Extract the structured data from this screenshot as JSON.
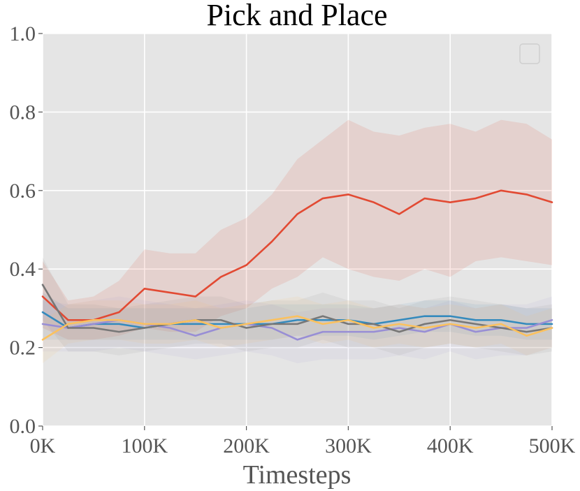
{
  "chart_data": {
    "type": "line",
    "title": "Pick and Place",
    "xlabel": "Timesteps",
    "ylabel": "",
    "xlim": [
      0,
      500000
    ],
    "ylim": [
      0,
      1.0
    ],
    "x_ticks": [
      0,
      100000,
      200000,
      300000,
      400000,
      500000
    ],
    "x_tick_labels": [
      "0K",
      "100K",
      "200K",
      "300K",
      "400K",
      "500K"
    ],
    "y_ticks": [
      0.0,
      0.2,
      0.4,
      0.6,
      0.8,
      1.0
    ],
    "y_tick_labels": [
      "0.0",
      "0.2",
      "0.4",
      "0.6",
      "0.8",
      "1.0"
    ],
    "grid": true,
    "legend": "top-right (empty)",
    "background": "#e5e5e5",
    "x": [
      0,
      25000,
      50000,
      75000,
      100000,
      125000,
      150000,
      175000,
      200000,
      225000,
      250000,
      275000,
      300000,
      325000,
      350000,
      375000,
      400000,
      425000,
      450000,
      475000,
      500000
    ],
    "series": [
      {
        "color": "#e24a33",
        "values": [
          0.33,
          0.27,
          0.27,
          0.29,
          0.35,
          0.34,
          0.33,
          0.38,
          0.41,
          0.47,
          0.54,
          0.58,
          0.59,
          0.57,
          0.54,
          0.58,
          0.57,
          0.58,
          0.6,
          0.59,
          0.57
        ],
        "lower": [
          0.25,
          0.22,
          0.22,
          0.23,
          0.25,
          0.24,
          0.24,
          0.28,
          0.3,
          0.35,
          0.38,
          0.43,
          0.4,
          0.38,
          0.37,
          0.4,
          0.38,
          0.42,
          0.43,
          0.42,
          0.41
        ],
        "upper": [
          0.42,
          0.32,
          0.33,
          0.37,
          0.45,
          0.44,
          0.44,
          0.5,
          0.53,
          0.59,
          0.68,
          0.73,
          0.78,
          0.75,
          0.74,
          0.76,
          0.77,
          0.75,
          0.78,
          0.77,
          0.73
        ]
      },
      {
        "color": "#348abd",
        "values": [
          0.29,
          0.25,
          0.26,
          0.26,
          0.25,
          0.26,
          0.26,
          0.26,
          0.26,
          0.26,
          0.27,
          0.27,
          0.27,
          0.26,
          0.27,
          0.28,
          0.28,
          0.27,
          0.27,
          0.26,
          0.26
        ],
        "lower": [
          0.22,
          0.22,
          0.22,
          0.22,
          0.22,
          0.22,
          0.22,
          0.22,
          0.22,
          0.22,
          0.23,
          0.23,
          0.23,
          0.22,
          0.23,
          0.24,
          0.24,
          0.23,
          0.23,
          0.22,
          0.22
        ],
        "upper": [
          0.34,
          0.3,
          0.3,
          0.3,
          0.3,
          0.3,
          0.3,
          0.3,
          0.3,
          0.31,
          0.31,
          0.31,
          0.31,
          0.3,
          0.31,
          0.32,
          0.32,
          0.31,
          0.31,
          0.3,
          0.3
        ]
      },
      {
        "color": "#988ed5",
        "values": [
          0.26,
          0.25,
          0.26,
          0.27,
          0.26,
          0.25,
          0.23,
          0.25,
          0.26,
          0.25,
          0.22,
          0.24,
          0.24,
          0.24,
          0.25,
          0.24,
          0.26,
          0.24,
          0.25,
          0.25,
          0.27
        ],
        "lower": [
          0.19,
          0.19,
          0.19,
          0.2,
          0.19,
          0.18,
          0.17,
          0.18,
          0.19,
          0.18,
          0.16,
          0.17,
          0.17,
          0.17,
          0.18,
          0.17,
          0.19,
          0.17,
          0.18,
          0.18,
          0.2
        ],
        "upper": [
          0.32,
          0.31,
          0.32,
          0.33,
          0.32,
          0.31,
          0.3,
          0.31,
          0.32,
          0.31,
          0.29,
          0.3,
          0.3,
          0.3,
          0.31,
          0.3,
          0.32,
          0.3,
          0.31,
          0.31,
          0.33
        ]
      },
      {
        "color": "#777777",
        "values": [
          0.36,
          0.25,
          0.25,
          0.24,
          0.25,
          0.26,
          0.27,
          0.27,
          0.25,
          0.26,
          0.26,
          0.28,
          0.26,
          0.26,
          0.24,
          0.26,
          0.27,
          0.26,
          0.25,
          0.24,
          0.25
        ],
        "lower": [
          0.27,
          0.19,
          0.19,
          0.18,
          0.19,
          0.2,
          0.21,
          0.21,
          0.19,
          0.2,
          0.2,
          0.22,
          0.2,
          0.2,
          0.18,
          0.2,
          0.21,
          0.2,
          0.19,
          0.18,
          0.19
        ],
        "upper": [
          0.43,
          0.31,
          0.31,
          0.3,
          0.31,
          0.32,
          0.33,
          0.33,
          0.31,
          0.32,
          0.32,
          0.34,
          0.32,
          0.32,
          0.3,
          0.32,
          0.33,
          0.32,
          0.31,
          0.3,
          0.31
        ]
      },
      {
        "color": "#fbc15e",
        "values": [
          0.22,
          0.26,
          0.27,
          0.27,
          0.26,
          0.26,
          0.27,
          0.25,
          0.26,
          0.27,
          0.28,
          0.26,
          0.27,
          0.25,
          0.26,
          0.25,
          0.26,
          0.25,
          0.26,
          0.23,
          0.25
        ],
        "lower": [
          0.16,
          0.21,
          0.22,
          0.22,
          0.21,
          0.21,
          0.22,
          0.2,
          0.21,
          0.22,
          0.23,
          0.21,
          0.22,
          0.2,
          0.21,
          0.2,
          0.21,
          0.2,
          0.21,
          0.18,
          0.2
        ],
        "upper": [
          0.27,
          0.31,
          0.32,
          0.32,
          0.31,
          0.31,
          0.32,
          0.3,
          0.31,
          0.32,
          0.33,
          0.31,
          0.32,
          0.3,
          0.31,
          0.3,
          0.31,
          0.3,
          0.31,
          0.28,
          0.3
        ]
      }
    ]
  }
}
